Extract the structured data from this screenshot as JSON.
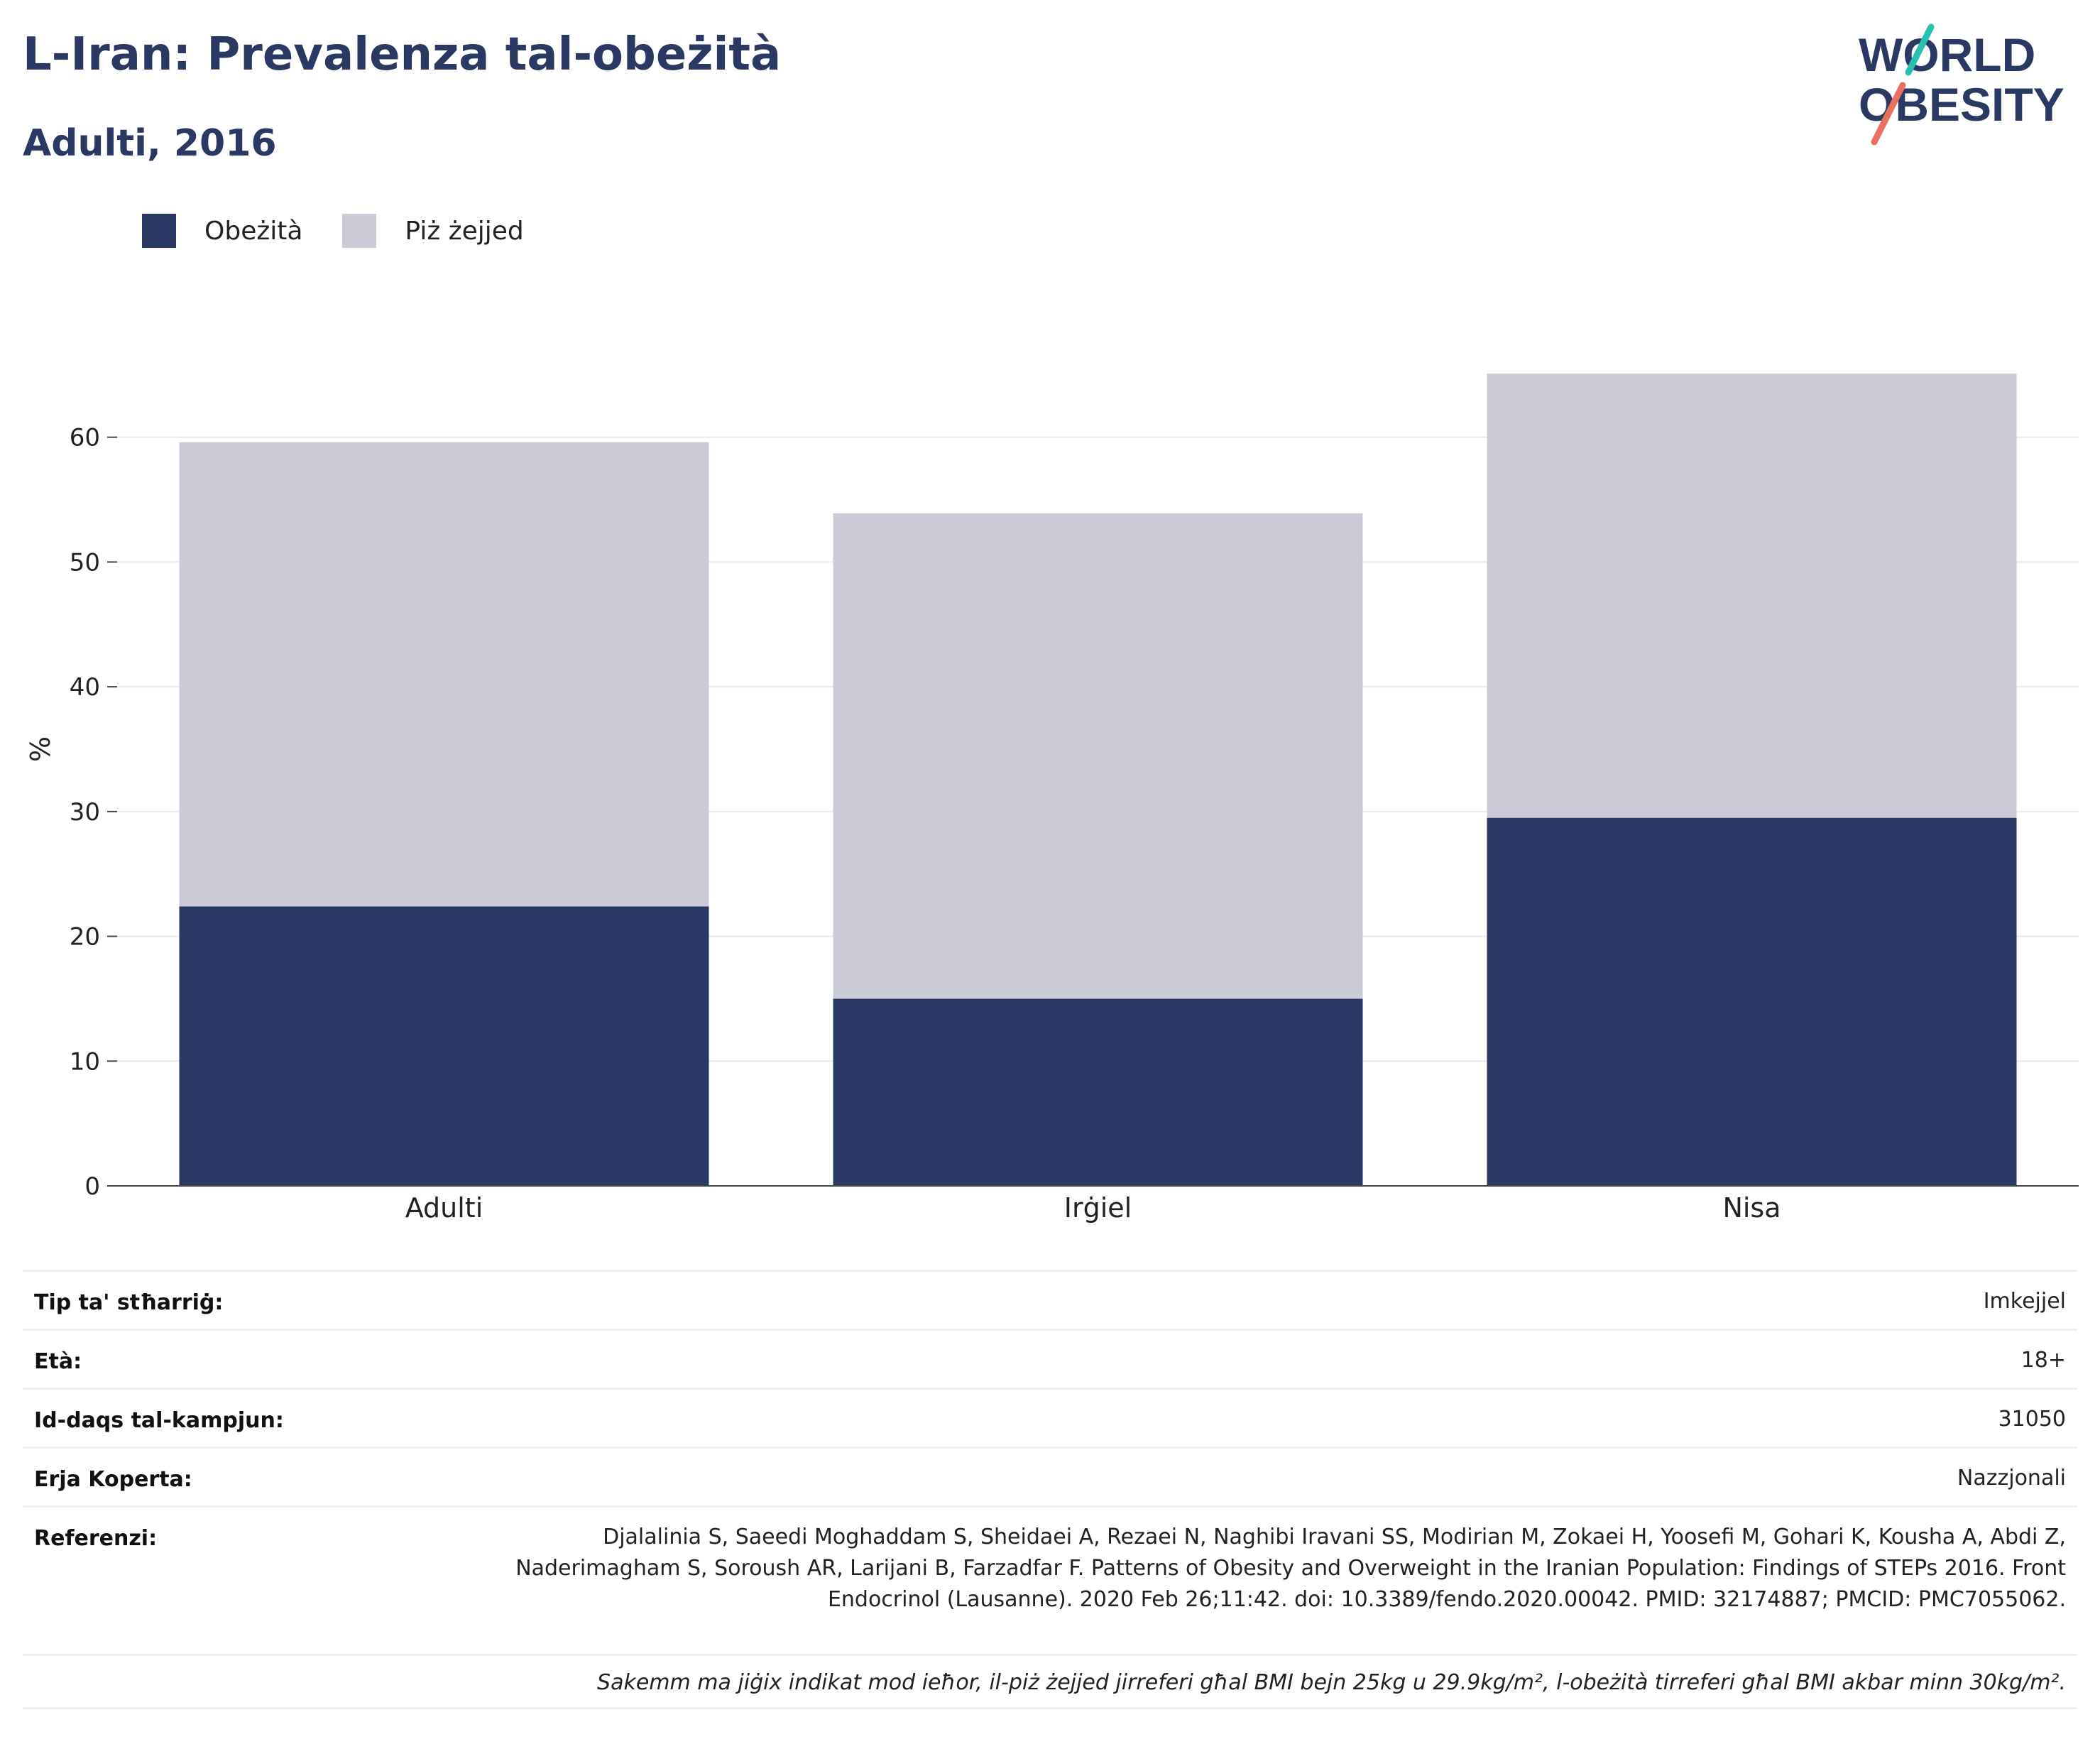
{
  "header": {
    "title": "L-Iran: Prevalenza tal-obeżità",
    "subtitle": "Adulti, 2016"
  },
  "logo": {
    "line1": "WORLD",
    "line2": "OBESITY"
  },
  "colors": {
    "obesity": "#2a3863",
    "overweight": "#cacbd7",
    "title": "#2a3863",
    "logo_teal": "#2bbfb0",
    "logo_red": "#e8705e"
  },
  "legend": [
    {
      "label": "Obeżità",
      "color": "#2a3863"
    },
    {
      "label": "Piż żejjed",
      "color": "#cacbd7"
    }
  ],
  "chart_data": {
    "type": "bar",
    "stacked": true,
    "categories": [
      "Adulti",
      "Irġiel",
      "Nisa"
    ],
    "series": [
      {
        "name": "Obeżità",
        "values": [
          22.4,
          15.0,
          29.5
        ]
      },
      {
        "name": "Piż żejjed",
        "values": [
          37.2,
          38.9,
          35.6
        ]
      }
    ],
    "ylabel": "%",
    "ylim": [
      0,
      70
    ],
    "yticks": [
      0,
      10,
      20,
      30,
      40,
      50,
      60
    ],
    "grid": true,
    "legend_position": "top-left"
  },
  "info": [
    {
      "key": "Tip ta' stħarriġ:",
      "value": "Imkejjel"
    },
    {
      "key": "Età:",
      "value": "18+"
    },
    {
      "key": "Id-daqs tal-kampjun:",
      "value": "31050"
    },
    {
      "key": "Erja Koperta:",
      "value": "Nazzjonali"
    },
    {
      "key": "Referenzi:",
      "value": "Djalalinia S, Saeedi Moghaddam S, Sheidaei A, Rezaei N, Naghibi Iravani SS, Modirian M, Zokaei H, Yoosefi M, Gohari K, Kousha A, Abdi Z, Naderimagham S, Soroush AR, Larijani B, Farzadfar F. Patterns of Obesity and Overweight in the Iranian Population: Findings of STEPs 2016. Front Endocrinol (Lausanne). 2020 Feb 26;11:42. doi: 10.3389/fendo.2020.00042. PMID: 32174887; PMCID: PMC7055062."
    }
  ],
  "note": "Sakemm ma jiġix indikat mod ieħor, il-piż żejjed jirreferi għal BMI bejn 25kg u 29.9kg/m², l-obeżità tirreferi għal BMI akbar minn 30kg/m²."
}
